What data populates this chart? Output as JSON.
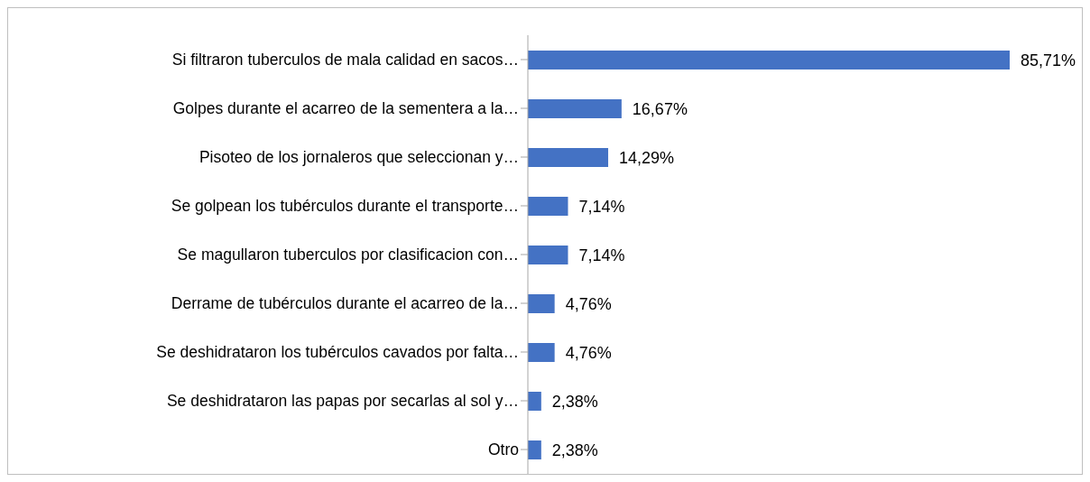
{
  "chart_data": {
    "type": "bar",
    "orientation": "horizontal",
    "color": "#4472c4",
    "categories": [
      "Si filtraron tuberculos de mala calidad en sacos…",
      "Golpes durante el acarreo de la sementera a la…",
      "Pisoteo de los jornaleros que seleccionan y…",
      "Se golpean los tubérculos durante el transporte…",
      "Se magullaron tuberculos por clasificacion con…",
      "Derrame de tubérculos durante el acarreo de la…",
      "Se deshidrataron los tubérculos cavados por falta…",
      "Se deshidrataron las papas por secarlas al sol y…",
      "Otro"
    ],
    "values": [
      85.71,
      16.67,
      14.29,
      7.14,
      7.14,
      4.76,
      4.76,
      2.38,
      2.38
    ],
    "value_labels": [
      "85,71%",
      "16,67%",
      "14,29%",
      "7,14%",
      "7,14%",
      "4,76%",
      "4,76%",
      "2,38%",
      "2,38%"
    ]
  }
}
